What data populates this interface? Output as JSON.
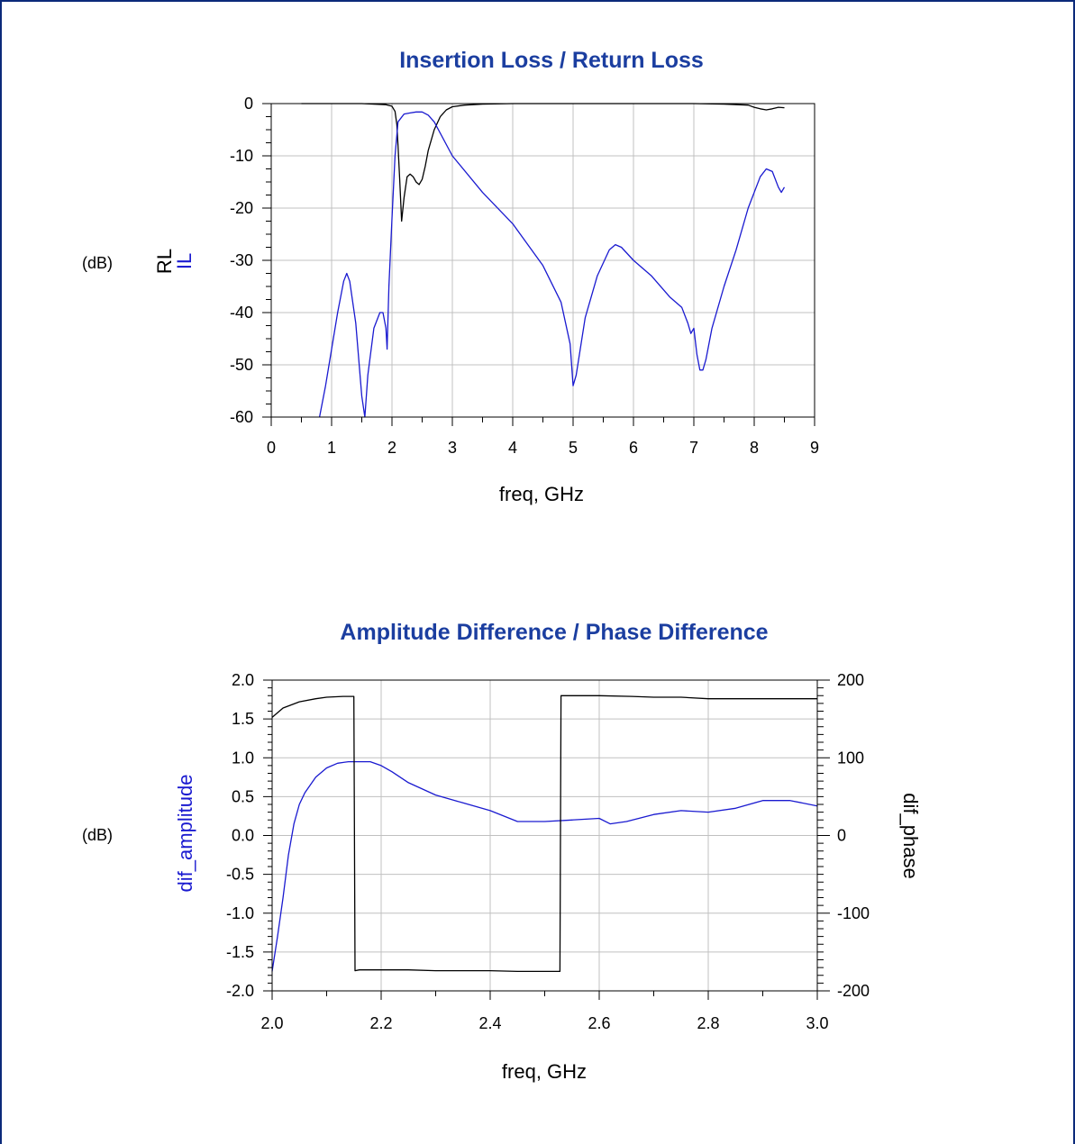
{
  "colors": {
    "frame": "#0b2a7a",
    "title": "#1b3ea0",
    "blue_series": "#1a1ad0",
    "black_series": "#000000",
    "grid": "#c0c0c0"
  },
  "chart_data": [
    {
      "type": "line",
      "title": "Insertion Loss / Return Loss",
      "xlabel": "freq, GHz",
      "unit_label": "(dB)",
      "ylabel_lines": [
        "RL",
        "IL"
      ],
      "xlim": [
        0,
        9
      ],
      "ylim": [
        -60,
        0
      ],
      "xticks": [
        0,
        1,
        2,
        3,
        4,
        5,
        6,
        7,
        8,
        9
      ],
      "yticks": [
        0,
        -10,
        -20,
        -30,
        -40,
        -50,
        -60
      ],
      "grid": true,
      "series": [
        {
          "name": "RL",
          "color": "#000000",
          "x": [
            0.5,
            1.0,
            1.5,
            1.7,
            1.9,
            2.0,
            2.05,
            2.08,
            2.1,
            2.13,
            2.16,
            2.2,
            2.25,
            2.3,
            2.35,
            2.4,
            2.45,
            2.5,
            2.55,
            2.6,
            2.7,
            2.8,
            2.9,
            3.0,
            3.2,
            3.5,
            4.0,
            5.0,
            6.0,
            7.0,
            7.5,
            7.9,
            8.0,
            8.1,
            8.2,
            8.3,
            8.4,
            8.5
          ],
          "y": [
            0,
            0,
            0,
            -0.1,
            -0.2,
            -0.5,
            -1.5,
            -4,
            -8,
            -15,
            -22.5,
            -18,
            -14,
            -13.5,
            -14,
            -15,
            -15.5,
            -14.5,
            -12,
            -9,
            -5,
            -2.5,
            -1.2,
            -0.6,
            -0.3,
            -0.1,
            0,
            0,
            0,
            0,
            -0.1,
            -0.3,
            -0.7,
            -1.0,
            -1.2,
            -1.0,
            -0.7,
            -0.8
          ]
        },
        {
          "name": "IL",
          "color": "#1a1ad0",
          "x": [
            0.8,
            0.9,
            1.0,
            1.1,
            1.2,
            1.25,
            1.3,
            1.4,
            1.5,
            1.55,
            1.6,
            1.7,
            1.8,
            1.85,
            1.9,
            1.92,
            1.95,
            2.0,
            2.05,
            2.1,
            2.2,
            2.3,
            2.4,
            2.5,
            2.6,
            2.7,
            3.0,
            3.5,
            4.0,
            4.5,
            4.8,
            4.95,
            5.0,
            5.05,
            5.2,
            5.4,
            5.6,
            5.7,
            5.8,
            6.0,
            6.3,
            6.6,
            6.8,
            6.9,
            6.95,
            7.0,
            7.05,
            7.1,
            7.15,
            7.2,
            7.3,
            7.5,
            7.7,
            7.9,
            8.1,
            8.2,
            8.3,
            8.4,
            8.45,
            8.5
          ],
          "y": [
            -60,
            -54,
            -47,
            -40,
            -34,
            -32.5,
            -34,
            -42,
            -56,
            -60,
            -52,
            -43,
            -40,
            -40,
            -43,
            -47,
            -35,
            -22,
            -10,
            -3.5,
            -2,
            -1.8,
            -1.6,
            -1.6,
            -2.2,
            -3.5,
            -10,
            -17,
            -23,
            -31,
            -38,
            -46,
            -54,
            -52,
            -41,
            -33,
            -28,
            -27,
            -27.5,
            -30,
            -33,
            -37,
            -39,
            -42,
            -44,
            -43,
            -48,
            -51,
            -51,
            -49,
            -43,
            -35,
            -28,
            -20,
            -14,
            -12.5,
            -13,
            -16,
            -17,
            -16
          ]
        }
      ]
    },
    {
      "type": "line",
      "title": "Amplitude Difference / Phase Difference",
      "xlabel": "freq, GHz",
      "unit_label": "(dB)",
      "ylabel_left": "dif_amplitude",
      "ylabel_right": "dif_phase",
      "xlim": [
        2.0,
        3.0
      ],
      "ylim_left": [
        -2.0,
        2.0
      ],
      "ylim_right": [
        -200,
        200
      ],
      "xticks": [
        "2.0",
        "2.2",
        "2.4",
        "2.6",
        "2.8",
        "3.0"
      ],
      "yticks_left": [
        "2.0",
        "1.5",
        "1.0",
        "0.5",
        "0.0",
        "-0.5",
        "-1.0",
        "-1.5",
        "-2.0"
      ],
      "yticks_right": [
        "200",
        "100",
        "0",
        "-100",
        "-200"
      ],
      "grid": true,
      "series": [
        {
          "name": "dif_amplitude",
          "axis": "left",
          "color": "#1a1ad0",
          "x": [
            2.0,
            2.01,
            2.02,
            2.03,
            2.04,
            2.05,
            2.06,
            2.08,
            2.1,
            2.12,
            2.14,
            2.16,
            2.18,
            2.2,
            2.22,
            2.25,
            2.3,
            2.35,
            2.4,
            2.45,
            2.5,
            2.55,
            2.6,
            2.62,
            2.65,
            2.7,
            2.75,
            2.8,
            2.85,
            2.9,
            2.95,
            3.0
          ],
          "y": [
            -1.75,
            -1.3,
            -0.8,
            -0.25,
            0.15,
            0.4,
            0.55,
            0.75,
            0.87,
            0.93,
            0.95,
            0.95,
            0.95,
            0.9,
            0.82,
            0.68,
            0.52,
            0.42,
            0.32,
            0.18,
            0.18,
            0.2,
            0.22,
            0.15,
            0.18,
            0.27,
            0.32,
            0.3,
            0.35,
            0.45,
            0.45,
            0.38
          ]
        },
        {
          "name": "dif_phase",
          "axis": "right",
          "color": "#000000",
          "x": [
            2.0,
            2.02,
            2.05,
            2.08,
            2.1,
            2.13,
            2.15,
            2.152,
            2.16,
            2.25,
            2.3,
            2.4,
            2.45,
            2.5,
            2.528,
            2.53,
            2.6,
            2.66,
            2.7,
            2.75,
            2.8,
            2.9,
            3.0
          ],
          "y": [
            152,
            164,
            172,
            176,
            178,
            179,
            179,
            -174,
            -173,
            -173,
            -174,
            -174,
            -175,
            -175,
            -175,
            180,
            180,
            179,
            178,
            178,
            176,
            176,
            176
          ]
        }
      ]
    }
  ]
}
